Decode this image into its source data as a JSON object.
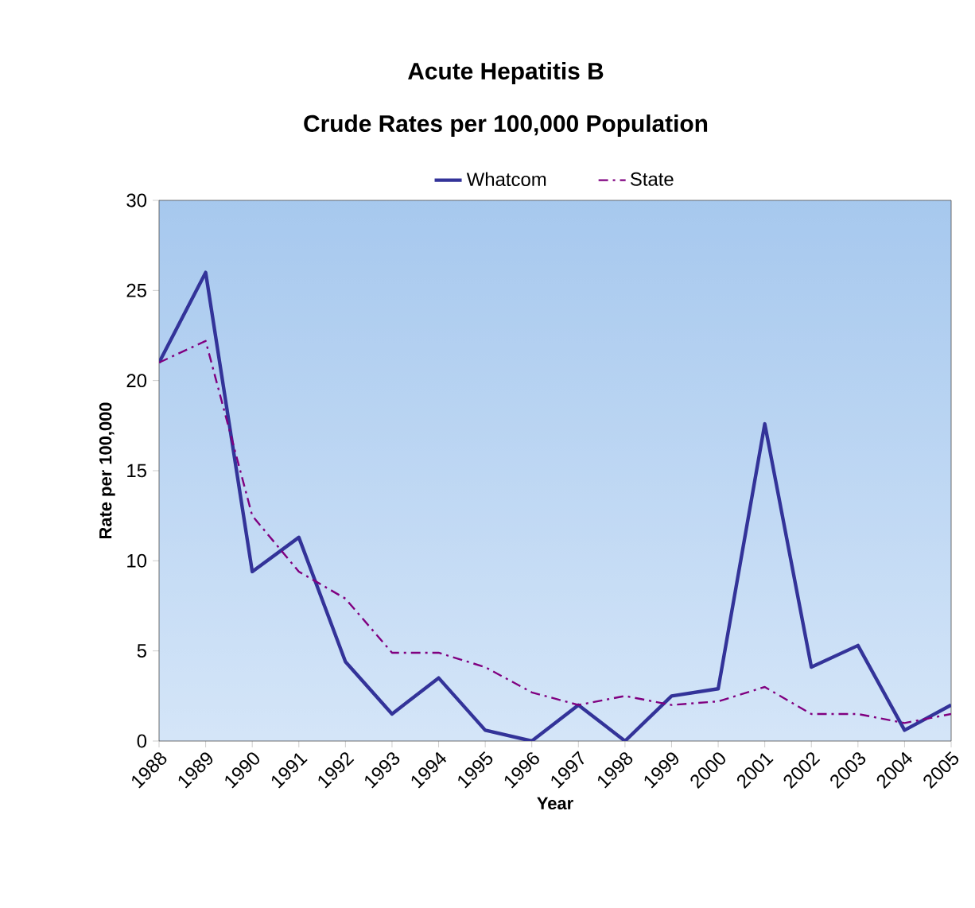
{
  "chart_data": {
    "type": "line",
    "title": "Acute Hepatitis B",
    "subtitle": "Crude Rates per 100,000 Population",
    "xlabel": "Year",
    "ylabel": "Rate per 100,000",
    "categories": [
      "1988",
      "1989",
      "1990",
      "1991",
      "1992",
      "1993",
      "1994",
      "1995",
      "1996",
      "1997",
      "1998",
      "1999",
      "2000",
      "2001",
      "2002",
      "2003",
      "2004",
      "2005"
    ],
    "series": [
      {
        "name": "Whatcom",
        "color": "#333399",
        "line_style": "solid",
        "values": [
          21,
          26,
          9.4,
          11.3,
          4.4,
          1.5,
          3.5,
          0.6,
          0,
          2.0,
          0,
          2.5,
          2.9,
          17.6,
          4.1,
          5.3,
          0.6,
          2.0
        ]
      },
      {
        "name": "State",
        "color": "#800080",
        "line_style": "dashed",
        "values": [
          21,
          22.2,
          12.5,
          9.4,
          7.9,
          4.9,
          4.9,
          4.1,
          2.7,
          2.0,
          2.5,
          2.0,
          2.2,
          3.0,
          1.5,
          1.5,
          1.0,
          1.5
        ]
      }
    ],
    "ylim": [
      0,
      30
    ],
    "yticks": [
      0,
      5,
      10,
      15,
      20,
      25,
      30
    ],
    "grid": false,
    "legend": "top",
    "marker": "none"
  }
}
